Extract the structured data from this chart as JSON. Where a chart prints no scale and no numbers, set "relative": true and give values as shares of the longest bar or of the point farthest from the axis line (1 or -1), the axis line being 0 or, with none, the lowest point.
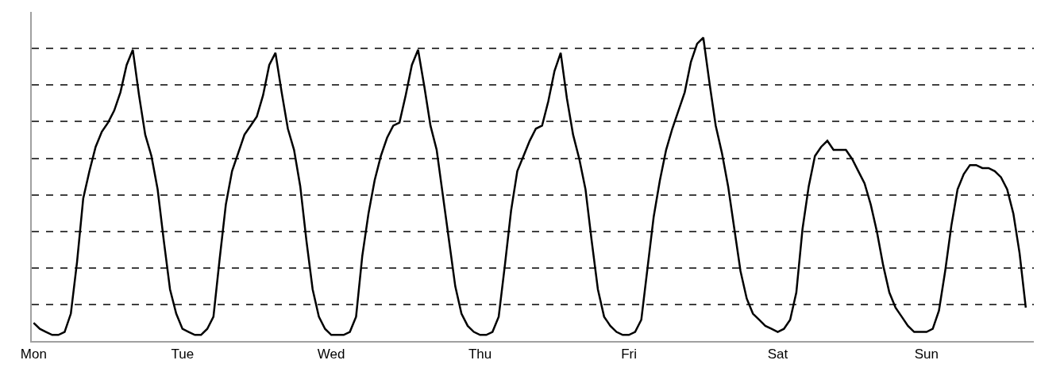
{
  "chart_data": {
    "type": "line",
    "relative": true,
    "grid": "y",
    "marker": "none",
    "line_style": "solid",
    "categories": [
      "Mon",
      null,
      null,
      null,
      null,
      null,
      null,
      null,
      null,
      null,
      null,
      null,
      null,
      null,
      null,
      null,
      null,
      null,
      null,
      null,
      null,
      null,
      null,
      null,
      "Tue",
      null,
      null,
      null,
      null,
      null,
      null,
      null,
      null,
      null,
      null,
      null,
      null,
      null,
      null,
      null,
      null,
      null,
      null,
      null,
      null,
      null,
      null,
      null,
      "Wed",
      null,
      null,
      null,
      null,
      null,
      null,
      null,
      null,
      null,
      null,
      null,
      null,
      null,
      null,
      null,
      null,
      null,
      null,
      null,
      null,
      null,
      null,
      null,
      "Thu",
      null,
      null,
      null,
      null,
      null,
      null,
      null,
      null,
      null,
      null,
      null,
      null,
      null,
      null,
      null,
      null,
      null,
      null,
      null,
      null,
      null,
      null,
      null,
      "Fri",
      null,
      null,
      null,
      null,
      null,
      null,
      null,
      null,
      null,
      null,
      null,
      null,
      null,
      null,
      null,
      null,
      null,
      null,
      null,
      null,
      null,
      null,
      null,
      "Sat",
      null,
      null,
      null,
      null,
      null,
      null,
      null,
      null,
      null,
      null,
      null,
      null,
      null,
      null,
      null,
      null,
      null,
      null,
      null,
      null,
      null,
      null,
      null,
      "Sun",
      null,
      null,
      null,
      null,
      null,
      null,
      null,
      null,
      null,
      null,
      null,
      null,
      null,
      null,
      null,
      null
    ],
    "series": [
      {
        "color": "#000000",
        "values": [
          0.06,
          0.04,
          0.03,
          0.02,
          0.02,
          0.03,
          0.09,
          0.26,
          0.47,
          0.56,
          0.64,
          0.69,
          0.72,
          0.76,
          0.82,
          0.91,
          0.96,
          0.81,
          0.68,
          0.61,
          0.5,
          0.33,
          0.17,
          0.09,
          0.04,
          0.03,
          0.02,
          0.02,
          0.04,
          0.08,
          0.27,
          0.45,
          0.56,
          0.62,
          0.68,
          0.71,
          0.74,
          0.81,
          0.91,
          0.95,
          0.82,
          0.7,
          0.63,
          0.51,
          0.33,
          0.17,
          0.08,
          0.04,
          0.02,
          0.02,
          0.02,
          0.03,
          0.08,
          0.28,
          0.42,
          0.53,
          0.61,
          0.67,
          0.71,
          0.72,
          0.81,
          0.91,
          0.96,
          0.84,
          0.71,
          0.63,
          0.48,
          0.33,
          0.18,
          0.09,
          0.05,
          0.03,
          0.02,
          0.02,
          0.03,
          0.08,
          0.25,
          0.43,
          0.56,
          0.61,
          0.66,
          0.7,
          0.71,
          0.79,
          0.89,
          0.95,
          0.8,
          0.68,
          0.6,
          0.5,
          0.33,
          0.17,
          0.08,
          0.05,
          0.03,
          0.02,
          0.02,
          0.03,
          0.07,
          0.24,
          0.41,
          0.53,
          0.63,
          0.7,
          0.76,
          0.82,
          0.92,
          0.98,
          1.0,
          0.85,
          0.71,
          0.62,
          0.51,
          0.37,
          0.23,
          0.14,
          0.09,
          0.07,
          0.05,
          0.04,
          0.03,
          0.04,
          0.07,
          0.16,
          0.37,
          0.51,
          0.61,
          0.64,
          0.66,
          0.63,
          0.63,
          0.63,
          0.6,
          0.56,
          0.52,
          0.45,
          0.36,
          0.25,
          0.16,
          0.11,
          0.08,
          0.05,
          0.03,
          0.03,
          0.03,
          0.04,
          0.1,
          0.23,
          0.38,
          0.5,
          0.55,
          0.58,
          0.58,
          0.57,
          0.57,
          0.56,
          0.54,
          0.5,
          0.42,
          0.29,
          0.11
        ]
      }
    ]
  }
}
